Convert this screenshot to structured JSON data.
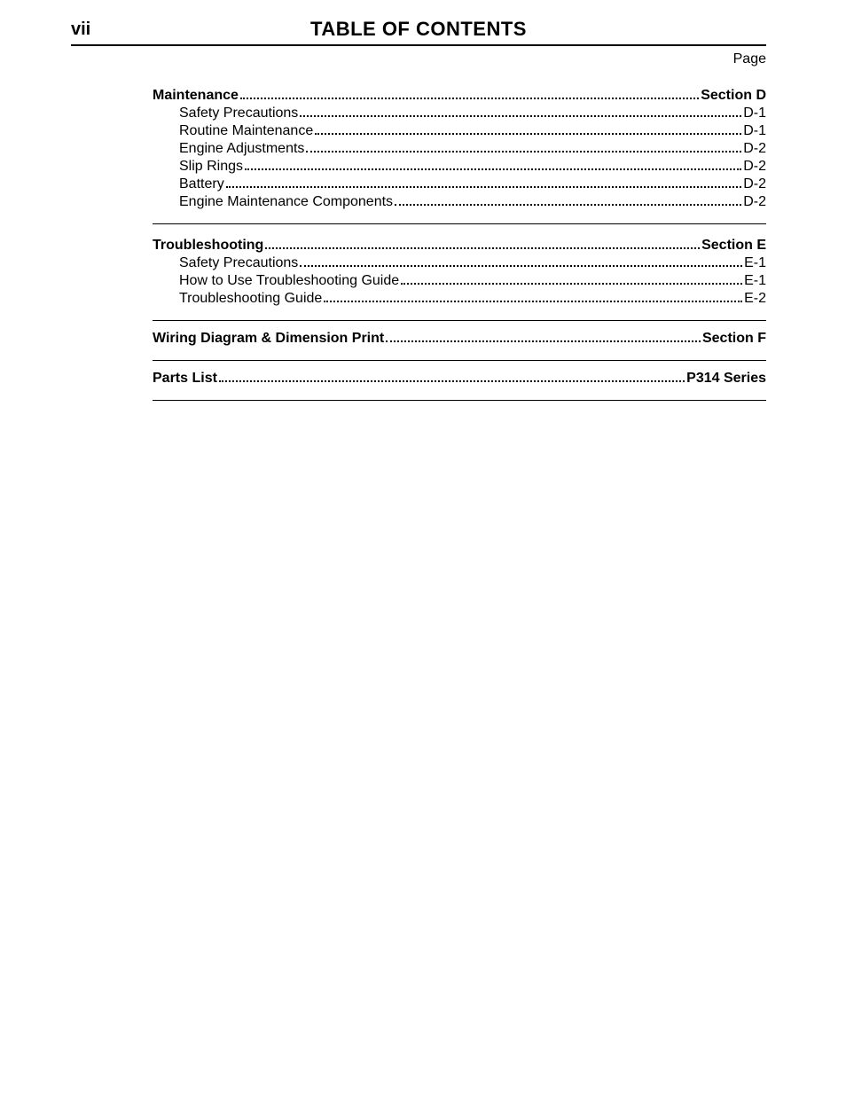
{
  "page_number": "vii",
  "title": "TABLE OF CONTENTS",
  "page_label": "Page",
  "sections": [
    {
      "heading": {
        "label": "Maintenance",
        "page": "Section D"
      },
      "items": [
        {
          "label": "Safety Precautions",
          "page": "D-1"
        },
        {
          "label": "Routine Maintenance",
          "page": "D-1"
        },
        {
          "label": "Engine Adjustments",
          "page": "D-2"
        },
        {
          "label": "Slip Rings",
          "page": "D-2"
        },
        {
          "label": "Battery",
          "page": "D-2"
        },
        {
          "label": "Engine Maintenance Components",
          "page": "D-2"
        }
      ]
    },
    {
      "heading": {
        "label": "Troubleshooting",
        "page": "Section E"
      },
      "items": [
        {
          "label": "Safety Precautions",
          "page": "E-1"
        },
        {
          "label": "How to Use Troubleshooting Guide",
          "page": "E-1"
        },
        {
          "label": "Troubleshooting Guide",
          "page": "E-2"
        }
      ]
    },
    {
      "heading": {
        "label": "Wiring Diagram & Dimension Print",
        "page": "Section F"
      },
      "items": []
    },
    {
      "heading": {
        "label": "Parts List",
        "page": "P314 Series"
      },
      "items": []
    }
  ]
}
